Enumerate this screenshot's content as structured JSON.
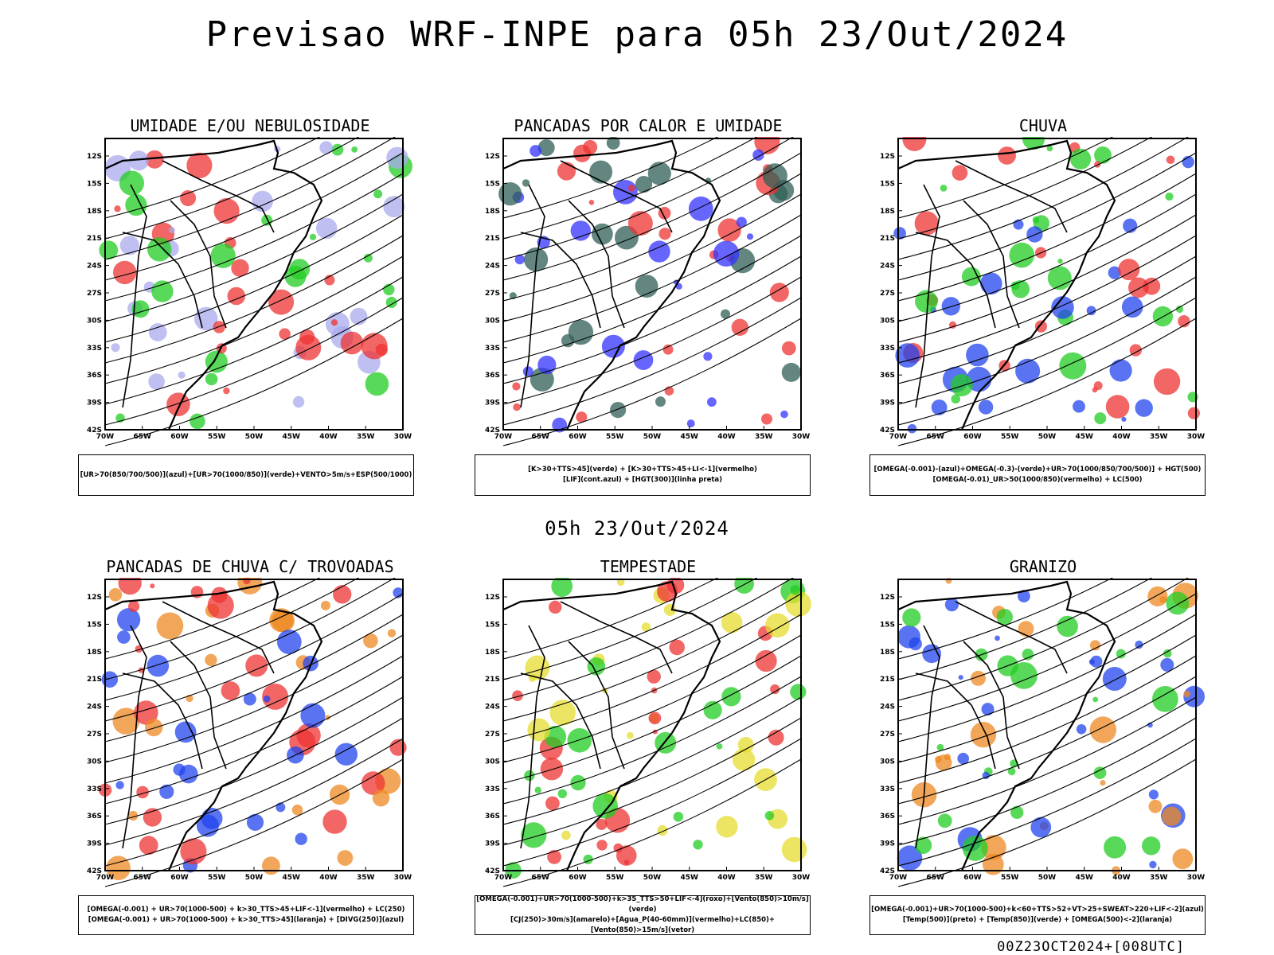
{
  "title": "Previsao WRF-INPE  para 05h 23/Out/2024",
  "subtitle": "05h 23/Out/2024",
  "footer": "00Z23OCT2024+[008UTC]",
  "lat_labels": [
    "12S",
    "15S",
    "18S",
    "21S",
    "24S",
    "27S",
    "30S",
    "33S",
    "36S",
    "39S",
    "42S"
  ],
  "lon_labels": [
    "70W",
    "65W",
    "60W",
    "55W",
    "50W",
    "45W",
    "40W",
    "35W",
    "30W"
  ],
  "panels": [
    {
      "title": "UMIDADE E/OU NEBULOSIDADE",
      "legend": [
        "[UR>70(850/700/500)](azul)+[UR>70(1000/850)](verde)+VENTO>5m/s+ESP(500/1000)"
      ],
      "colors": [
        "#aaaaee",
        "#22cc22",
        "#ee3333"
      ]
    },
    {
      "title": "PANCADAS POR CALOR E UMIDADE",
      "legend": [
        "[K>30+TTS>45](verde) + [K>30+TTS>45+LI<-1](vermelho)",
        "[LIF](cont.azul) + [HGT(300)](linha preta)"
      ],
      "colors": [
        "#2f5f55",
        "#ee3333",
        "#3333ff"
      ]
    },
    {
      "title": "CHUVA",
      "legend": [
        "[OMEGA(-0.001)-(azul)+OMEGA(-0.3)-(verde)+UR>70(1000/850/700/500)] + HGT(500)",
        "[OMEGA(-0.01)_UR>50(1000/850)(vermelho) + LC(500)"
      ],
      "colors": [
        "#2244ee",
        "#22cc22",
        "#ee3333"
      ]
    },
    {
      "title": "PANCADAS DE CHUVA C/ TROVOADAS",
      "legend": [
        "[OMEGA(-0.001) + UR>70(1000-500) + k>30_TTS>45+LIF<-1](vermelho) + LC(250)",
        "[OMEGA(-0.001) + UR>70(1000-500) + k>30_TTS>45](laranja) + [DIVG(250)](azul)"
      ],
      "colors": [
        "#ee3333",
        "#ee8822",
        "#2244ee"
      ]
    },
    {
      "title": "TEMPESTADE",
      "legend": [
        "[OMEGA(-0.001)+UR>70(1000-500)+k>35_TTS>50+LIF<-4](roxo)+[Vento(850)>10m/s](verde)",
        "[CJ(250)>30m/s](amarelo)+[Agua_P(40-60mm)](vermelho)+LC(850)+[Vento(850)>15m/s](vetor)"
      ],
      "colors": [
        "#e5dc30",
        "#22cc22",
        "#ee3333"
      ]
    },
    {
      "title": "GRANIZO",
      "legend": [
        "[OMEGA(-0.001)+UR>70(1000-500)+k<60+TTS>52+VT>25+SWEAT>220+LIF<-2](azul)",
        "[Temp(500)](preto) + [Temp(850)](verde) + [OMEGA(500)<-2](laranja)"
      ],
      "colors": [
        "#2244ee",
        "#22cc22",
        "#ee8822"
      ]
    }
  ]
}
